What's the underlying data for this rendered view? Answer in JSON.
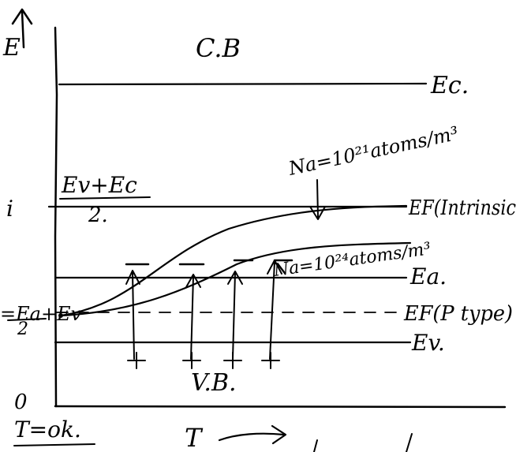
{
  "labels": {
    "conduction_band": "C.B",
    "ec": "Ec.",
    "ev_plus_ec_num": "Ev+Ec",
    "ev_plus_ec_den": "2.",
    "na_low": "Na=10²¹atoms/m³",
    "ef_intrinsic": "EF(Intrinsic",
    "na_high": "Na=10²⁴atoms/m³",
    "ea": "Ea.",
    "ea_ev_num": "=Ea+Ev",
    "ea_ev_den": "2",
    "ef_ptype": "EF(P type)",
    "ev": "Ev.",
    "valence_band": "V.B.",
    "edge_i": "i",
    "edge_e": "E",
    "edge_zero": "0",
    "t_zero": "T=ok.",
    "t_axis": "T"
  },
  "icons": {
    "y_axis_arrow": "arrow-up-icon",
    "t_axis_arrow": "arrow-right-icon"
  }
}
